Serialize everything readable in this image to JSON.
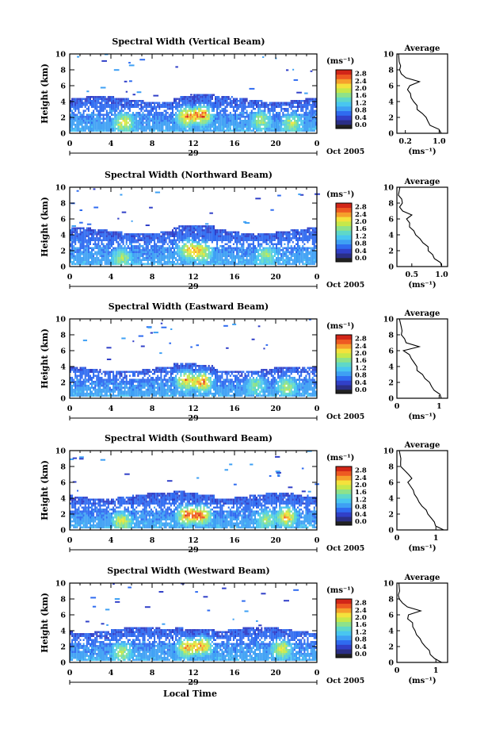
{
  "figure": {
    "xlabel": "Local Time",
    "date_label": "Oct 2005",
    "unit_label": "(ms⁻¹)",
    "average_title": "Average",
    "average_xlabel": "(ms⁻¹)",
    "day_label": "29"
  },
  "colors": {
    "scale": [
      "#2b2f86",
      "#3140c8",
      "#2f6bf0",
      "#3ea0f4",
      "#49c6f0",
      "#5fd8c8",
      "#8ee28a",
      "#c6e84a",
      "#f4e23c",
      "#f6a02c",
      "#ee5a22",
      "#d22618"
    ]
  },
  "chart_data": [
    {
      "type": "heatmap",
      "title": "Spectral Width (Vertical Beam)",
      "ylabel": "Height (km)",
      "xlim": [
        0,
        24
      ],
      "ylim": [
        0,
        10
      ],
      "xticks": [
        "0",
        "4",
        "8",
        "12",
        "16",
        "20",
        "0"
      ],
      "yticks": [
        "0",
        "2",
        "4",
        "6",
        "8",
        "10"
      ],
      "colorbar": {
        "ticks": [
          "0.0",
          "0.4",
          "0.8",
          "1.2",
          "1.6",
          "2.0",
          "2.4",
          "2.8"
        ],
        "range": [
          0,
          3.0
        ]
      },
      "hotspots": [
        [
          5.2,
          1.3,
          1.8
        ],
        [
          11.3,
          2.0,
          2.4
        ],
        [
          12.8,
          2.2,
          2.6
        ],
        [
          18.5,
          1.6,
          1.4
        ],
        [
          21.5,
          1.2,
          1.4
        ]
      ],
      "top_height": 4.2,
      "average": {
        "xticks": [
          "0.2",
          "1.0"
        ],
        "xlim": [
          0,
          1.2
        ],
        "profile": [
          [
            0.0,
            1.05
          ],
          [
            0.5,
            1.0
          ],
          [
            1.0,
            0.8
          ],
          [
            1.5,
            0.72
          ],
          [
            2.0,
            0.68
          ],
          [
            2.5,
            0.6
          ],
          [
            3.0,
            0.5
          ],
          [
            3.5,
            0.46
          ],
          [
            4.0,
            0.4
          ],
          [
            4.5,
            0.36
          ],
          [
            5.0,
            0.32
          ],
          [
            5.5,
            0.26
          ],
          [
            6.0,
            0.3
          ],
          [
            6.5,
            0.52
          ],
          [
            7.0,
            0.2
          ],
          [
            7.5,
            0.12
          ],
          [
            8.0,
            0.08
          ],
          [
            8.5,
            0.1
          ],
          [
            9.0,
            0.05
          ],
          [
            10.0,
            0.04
          ]
        ]
      }
    },
    {
      "type": "heatmap",
      "title": "Spectral Width (Northward Beam)",
      "ylabel": "Height (km)",
      "xlim": [
        0,
        24
      ],
      "ylim": [
        0,
        10
      ],
      "xticks": [
        "0",
        "4",
        "8",
        "12",
        "16",
        "20",
        "0"
      ],
      "yticks": [
        "0",
        "2",
        "4",
        "6",
        "8",
        "10"
      ],
      "colorbar": {
        "ticks": [
          "0.0",
          "0.4",
          "0.8",
          "1.2",
          "1.6",
          "2.0",
          "2.4",
          "2.8"
        ],
        "range": [
          0,
          3.0
        ]
      },
      "hotspots": [
        [
          11.5,
          2.0,
          2.0
        ],
        [
          12.8,
          1.8,
          1.8
        ],
        [
          5.0,
          1.0,
          1.2
        ],
        [
          19.0,
          1.4,
          1.2
        ]
      ],
      "top_height": 4.4,
      "average": {
        "xticks": [
          "0.5",
          "1.0"
        ],
        "xlim": [
          0.25,
          1.1
        ],
        "profile": [
          [
            0.0,
            1.0
          ],
          [
            0.5,
            0.98
          ],
          [
            1.0,
            0.9
          ],
          [
            1.5,
            0.85
          ],
          [
            2.0,
            0.8
          ],
          [
            2.5,
            0.75
          ],
          [
            3.0,
            0.7
          ],
          [
            3.5,
            0.64
          ],
          [
            4.0,
            0.58
          ],
          [
            4.5,
            0.52
          ],
          [
            5.0,
            0.48
          ],
          [
            5.5,
            0.44
          ],
          [
            6.0,
            0.42
          ],
          [
            6.5,
            0.48
          ],
          [
            7.0,
            0.36
          ],
          [
            7.5,
            0.32
          ],
          [
            8.0,
            0.33
          ],
          [
            8.5,
            0.31
          ],
          [
            9.0,
            0.3
          ],
          [
            10.0,
            0.3
          ]
        ]
      }
    },
    {
      "type": "heatmap",
      "title": "Spectral Width (Eastward Beam)",
      "ylabel": "Height (km)",
      "xlim": [
        0,
        24
      ],
      "ylim": [
        0,
        10
      ],
      "xticks": [
        "0",
        "4",
        "8",
        "12",
        "16",
        "20",
        "0"
      ],
      "yticks": [
        "0",
        "2",
        "4",
        "6",
        "8",
        "10"
      ],
      "colorbar": {
        "ticks": [
          "0.0",
          "0.4",
          "0.8",
          "1.2",
          "1.6",
          "2.0",
          "2.4",
          "2.8"
        ],
        "range": [
          0,
          3.0
        ]
      },
      "hotspots": [
        [
          11.2,
          2.2,
          2.2
        ],
        [
          12.8,
          2.0,
          2.6
        ],
        [
          18.0,
          1.6,
          1.2
        ],
        [
          21.0,
          1.4,
          1.4
        ]
      ],
      "top_height": 3.6,
      "average": {
        "xticks": [
          "0",
          "1"
        ],
        "xlim": [
          0,
          1.2
        ],
        "profile": [
          [
            0.0,
            1.05
          ],
          [
            0.5,
            1.0
          ],
          [
            1.0,
            0.9
          ],
          [
            1.5,
            0.8
          ],
          [
            2.0,
            0.75
          ],
          [
            2.5,
            0.68
          ],
          [
            3.0,
            0.6
          ],
          [
            3.5,
            0.5
          ],
          [
            4.0,
            0.45
          ],
          [
            4.5,
            0.4
          ],
          [
            5.0,
            0.36
          ],
          [
            5.5,
            0.3
          ],
          [
            6.0,
            0.15
          ],
          [
            6.5,
            0.55
          ],
          [
            7.0,
            0.2
          ],
          [
            7.5,
            0.18
          ],
          [
            8.0,
            0.12
          ],
          [
            8.5,
            0.1
          ],
          [
            9.0,
            0.08
          ],
          [
            10.0,
            0.06
          ]
        ]
      }
    },
    {
      "type": "heatmap",
      "title": "Spectral Width (Southward Beam)",
      "ylabel": "Height (km)",
      "xlim": [
        0,
        24
      ],
      "ylim": [
        0,
        10
      ],
      "xticks": [
        "0",
        "4",
        "8",
        "12",
        "16",
        "20",
        "0"
      ],
      "yticks": [
        "0",
        "2",
        "4",
        "6",
        "8",
        "10"
      ],
      "colorbar": {
        "ticks": [
          "0.0",
          "0.4",
          "0.8",
          "1.2",
          "1.6",
          "2.0",
          "2.4",
          "2.8"
        ],
        "range": [
          0,
          3.0
        ]
      },
      "hotspots": [
        [
          5.0,
          1.0,
          1.6
        ],
        [
          11.3,
          1.8,
          2.4
        ],
        [
          12.7,
          1.8,
          2.6
        ],
        [
          21.0,
          1.6,
          2.2
        ],
        [
          19.0,
          1.2,
          1.2
        ]
      ],
      "top_height": 4.2,
      "average": {
        "xticks": [
          "0",
          "1"
        ],
        "xlim": [
          0,
          1.3
        ],
        "profile": [
          [
            0.0,
            1.2
          ],
          [
            0.5,
            1.0
          ],
          [
            1.0,
            0.95
          ],
          [
            1.5,
            0.9
          ],
          [
            2.0,
            0.8
          ],
          [
            2.5,
            0.75
          ],
          [
            3.0,
            0.65
          ],
          [
            3.5,
            0.56
          ],
          [
            4.0,
            0.5
          ],
          [
            4.5,
            0.45
          ],
          [
            5.0,
            0.4
          ],
          [
            5.5,
            0.34
          ],
          [
            6.0,
            0.28
          ],
          [
            6.5,
            0.36
          ],
          [
            7.0,
            0.3
          ],
          [
            7.5,
            0.2
          ],
          [
            8.0,
            0.12
          ],
          [
            8.5,
            0.1
          ],
          [
            9.0,
            0.08
          ],
          [
            10.0,
            0.06
          ]
        ]
      }
    },
    {
      "type": "heatmap",
      "title": "Spectral Width (Westward Beam)",
      "ylabel": "Height (km)",
      "xlim": [
        0,
        24
      ],
      "ylim": [
        0,
        10
      ],
      "xticks": [
        "0",
        "4",
        "8",
        "12",
        "16",
        "20",
        "0"
      ],
      "yticks": [
        "0",
        "2",
        "4",
        "6",
        "8",
        "10"
      ],
      "colorbar": {
        "ticks": [
          "0.0",
          "0.4",
          "0.8",
          "1.2",
          "1.6",
          "2.0",
          "2.4",
          "2.8"
        ],
        "range": [
          0,
          3.0
        ]
      },
      "hotspots": [
        [
          11.3,
          1.8,
          2.2
        ],
        [
          12.8,
          2.0,
          2.4
        ],
        [
          5.0,
          1.2,
          1.4
        ],
        [
          20.5,
          1.6,
          1.8
        ]
      ],
      "top_height": 4.0,
      "average": {
        "xticks": [
          "0",
          "1"
        ],
        "xlim": [
          0,
          1.3
        ],
        "profile": [
          [
            0.0,
            1.15
          ],
          [
            0.5,
            0.95
          ],
          [
            1.0,
            0.88
          ],
          [
            1.5,
            0.82
          ],
          [
            2.0,
            0.72
          ],
          [
            2.5,
            0.65
          ],
          [
            3.0,
            0.58
          ],
          [
            3.5,
            0.5
          ],
          [
            4.0,
            0.46
          ],
          [
            4.5,
            0.42
          ],
          [
            5.0,
            0.38
          ],
          [
            5.5,
            0.3
          ],
          [
            6.0,
            0.32
          ],
          [
            6.5,
            0.6
          ],
          [
            7.0,
            0.25
          ],
          [
            7.5,
            0.12
          ],
          [
            8.0,
            0.08
          ],
          [
            8.5,
            0.06
          ],
          [
            9.0,
            0.05
          ],
          [
            10.0,
            0.05
          ]
        ]
      }
    }
  ]
}
